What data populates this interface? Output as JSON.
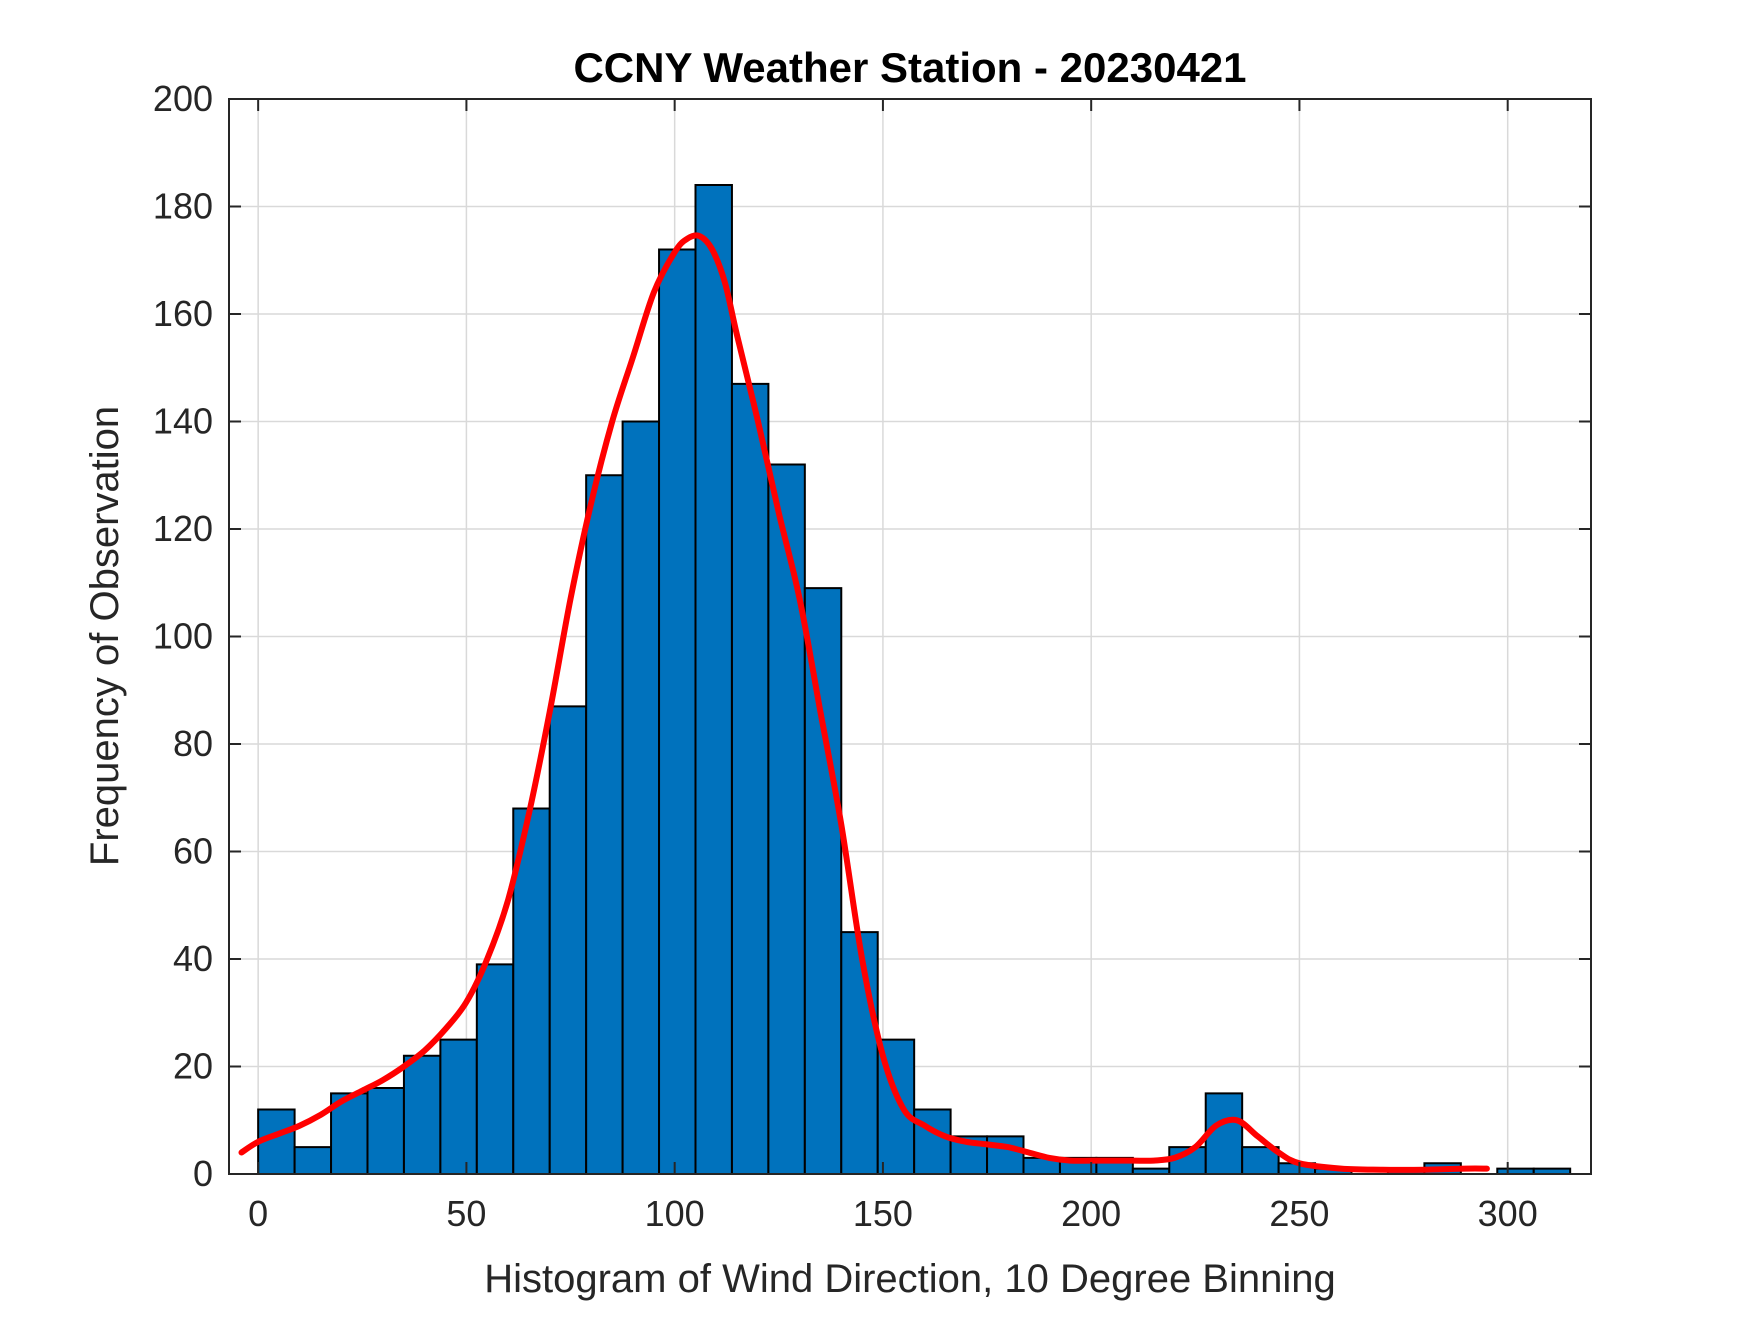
{
  "chart_data": {
    "type": "bar",
    "title": "CCNY Weather Station - 20230421",
    "xlabel": "Histogram of Wind Direction, 10 Degree Binning",
    "ylabel": "Frequency of Observation",
    "xlim": [
      -7,
      320
    ],
    "ylim": [
      0,
      200
    ],
    "grid": true,
    "bin_width": 8.75,
    "bin_start": 0,
    "values": [
      12,
      5,
      15,
      16,
      22,
      25,
      39,
      68,
      87,
      130,
      140,
      172,
      184,
      147,
      132,
      109,
      45,
      25,
      12,
      7,
      7,
      3,
      3,
      3,
      1,
      5,
      15,
      5,
      2,
      1,
      0,
      1,
      2,
      0,
      1,
      1
    ],
    "xticks": [
      0,
      50,
      100,
      150,
      200,
      250,
      300
    ],
    "yticks": [
      0,
      20,
      40,
      60,
      80,
      100,
      120,
      140,
      160,
      180,
      200
    ],
    "colors": {
      "bar_fill": "#0072BD",
      "bar_edge": "#000000",
      "curve": "#FF0000",
      "grid": "#d9d9d9",
      "axis": "#262626"
    },
    "series": [
      {
        "name": "density fit",
        "type": "line",
        "x": [
          -4,
          0,
          5,
          10,
          15,
          20,
          25,
          30,
          35,
          40,
          45,
          50,
          55,
          60,
          65,
          70,
          75,
          80,
          85,
          90,
          95,
          100,
          103,
          106,
          109,
          112,
          115,
          120,
          125,
          130,
          135,
          140,
          145,
          150,
          155,
          160,
          165,
          170,
          175,
          180,
          185,
          190,
          195,
          200,
          205,
          210,
          215,
          220,
          225,
          230,
          235,
          240,
          245,
          250,
          260,
          270,
          280,
          290,
          295
        ],
        "y": [
          4,
          6,
          7.5,
          9,
          11,
          13.5,
          15.5,
          17.5,
          20,
          23,
          27,
          32,
          40,
          51,
          67,
          86,
          107,
          125,
          140,
          152,
          164,
          171.5,
          174,
          174.5,
          172,
          166,
          156,
          140,
          123,
          107,
          86,
          65,
          40,
          22,
          12,
          9,
          7,
          6,
          5.5,
          5,
          4,
          3,
          2.5,
          2.5,
          2.5,
          2.5,
          2.5,
          3,
          5,
          9,
          10,
          7,
          4,
          2,
          1,
          0.8,
          0.8,
          1,
          1
        ]
      }
    ]
  }
}
